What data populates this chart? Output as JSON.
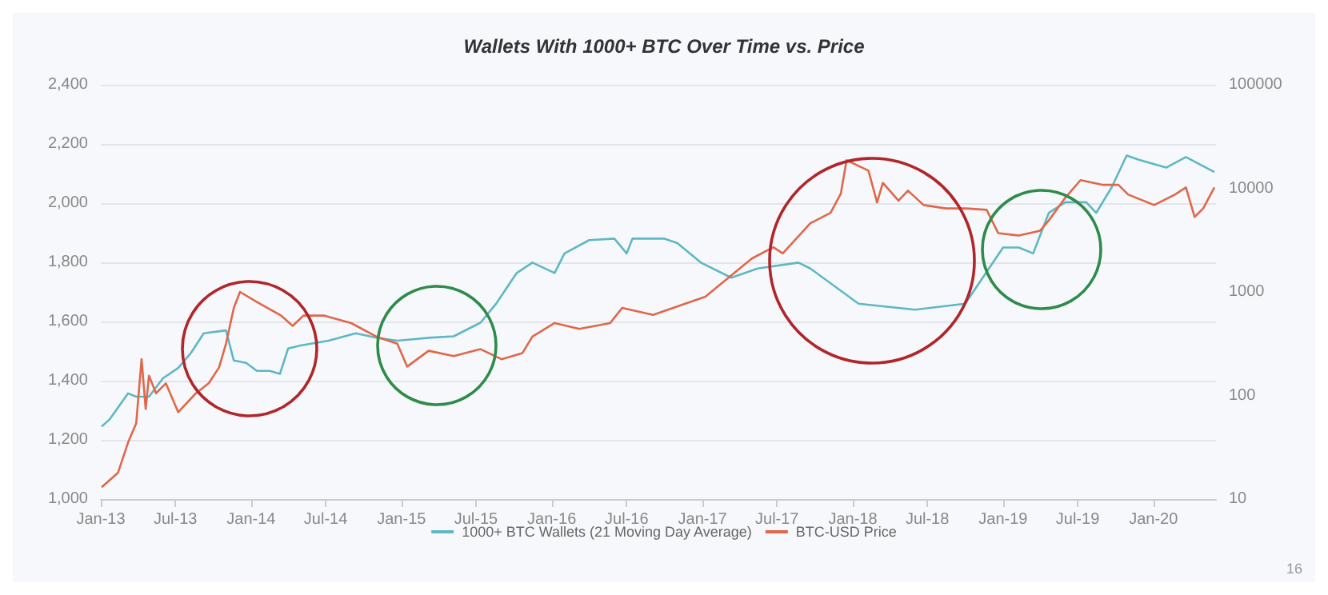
{
  "chart_data": {
    "type": "line",
    "title": "Wallets With 1000+ BTC Over Time vs. Price",
    "annotations": [
      "16"
    ],
    "xlim": [
      "2013-01",
      "2020-06"
    ],
    "xticks": [
      {
        "value": "2013-01",
        "label": "Jan-13"
      },
      {
        "value": "2013-07",
        "label": "Jul-13"
      },
      {
        "value": "2014-01",
        "label": "Jan-14"
      },
      {
        "value": "2014-07",
        "label": "Jul-14"
      },
      {
        "value": "2015-01",
        "label": "Jan-15"
      },
      {
        "value": "2015-07",
        "label": "Jul-15"
      },
      {
        "value": "2016-01",
        "label": "Jan-16"
      },
      {
        "value": "2016-07",
        "label": "Jul-16"
      },
      {
        "value": "2017-01",
        "label": "Jan-17"
      },
      {
        "value": "2017-07",
        "label": "Jul-17"
      },
      {
        "value": "2018-01",
        "label": "Jan-18"
      },
      {
        "value": "2018-07",
        "label": "Jul-18"
      },
      {
        "value": "2019-01",
        "label": "Jan-19"
      },
      {
        "value": "2019-07",
        "label": "Jul-19"
      },
      {
        "value": "2020-01",
        "label": "Jan-20"
      }
    ],
    "ylim": [
      1000,
      2400
    ],
    "yticks": [
      {
        "value": 1000,
        "label": "1,000"
      },
      {
        "value": 1200,
        "label": "1,200"
      },
      {
        "value": 1400,
        "label": "1,400"
      },
      {
        "value": 1600,
        "label": "1,600"
      },
      {
        "value": 1800,
        "label": "1,800"
      },
      {
        "value": 2000,
        "label": "2,000"
      },
      {
        "value": 2200,
        "label": "2,200"
      },
      {
        "value": 2400,
        "label": "2,400"
      }
    ],
    "y2lim": [
      10,
      100000
    ],
    "y2ticks": [
      10,
      100,
      1000,
      10000,
      100000
    ],
    "log": "y2",
    "grid": "y",
    "legend": "bottom",
    "line_style": "solid",
    "marker": "none",
    "series": [
      {
        "name": "1000+ BTC Wallets (21 Moving Day Average)",
        "color": "#5fb7c5",
        "x": [
          "2013-01-03",
          "2013-01-23",
          "2013-03-08",
          "2013-03-28",
          "2013-04-28",
          "2013-06-01",
          "2013-07-08",
          "2013-08-08",
          "2013-09-08",
          "2013-11-01",
          "2013-11-20",
          "2013-12-20",
          "2014-01-15",
          "2014-02-15",
          "2014-03-12",
          "2014-04-01",
          "2014-05-01",
          "2014-07-08",
          "2014-09-12",
          "2014-11-01",
          "2014-12-22",
          "2015-03-08",
          "2015-05-08",
          "2015-07-12",
          "2015-08-20",
          "2015-10-08",
          "2015-11-15",
          "2016-01-08",
          "2016-02-01",
          "2016-04-01",
          "2016-06-01",
          "2016-07-01",
          "2016-07-15",
          "2016-10-01",
          "2016-11-01",
          "2016-12-28",
          "2017-03-12",
          "2017-05-15",
          "2017-08-22",
          "2017-09-20",
          "2018-01-15",
          "2018-06-01",
          "2018-10-01",
          "2019-01-01",
          "2019-02-08",
          "2019-03-15",
          "2019-04-22",
          "2019-06-01",
          "2019-07-22",
          "2019-08-15",
          "2019-09-22",
          "2019-10-28",
          "2019-11-28",
          "2020-02-01",
          "2020-03-20",
          "2020-05-28"
        ],
        "values": [
          1245,
          1270,
          1357,
          1346,
          1346,
          1408,
          1443,
          1494,
          1560,
          1570,
          1468,
          1460,
          1433,
          1433,
          1423,
          1509,
          1519,
          1535,
          1560,
          1545,
          1535,
          1545,
          1550,
          1596,
          1662,
          1764,
          1799,
          1764,
          1830,
          1875,
          1880,
          1830,
          1880,
          1880,
          1865,
          1799,
          1748,
          1779,
          1799,
          1779,
          1660,
          1640,
          1660,
          1850,
          1850,
          1830,
          1967,
          2003,
          2003,
          1967,
          2054,
          2161,
          2146,
          2120,
          2156,
          2105
        ]
      },
      {
        "name": "BTC-USD Price",
        "color": "#e0674a",
        "axis": "y2",
        "x": [
          "2013-01-03",
          "2013-02-12",
          "2013-03-08",
          "2013-03-28",
          "2013-04-10",
          "2013-04-20",
          "2013-04-28",
          "2013-05-15",
          "2013-06-08",
          "2013-07-08",
          "2013-08-20",
          "2013-09-20",
          "2013-10-15",
          "2013-11-01",
          "2013-11-20",
          "2013-12-05",
          "2014-01-15",
          "2014-03-15",
          "2014-04-12",
          "2014-05-08",
          "2014-06-28",
          "2014-09-01",
          "2014-11-01",
          "2014-12-22",
          "2015-01-15",
          "2015-03-08",
          "2015-05-08",
          "2015-07-12",
          "2015-09-01",
          "2015-10-22",
          "2015-11-15",
          "2016-01-08",
          "2016-03-08",
          "2016-05-22",
          "2016-06-20",
          "2016-09-03",
          "2017-01-08",
          "2017-05-01",
          "2017-06-22",
          "2017-07-15",
          "2017-09-20",
          "2017-11-08",
          "2017-12-03",
          "2017-12-17",
          "2018-02-08",
          "2018-03-01",
          "2018-03-15",
          "2018-04-22",
          "2018-05-15",
          "2018-06-22",
          "2018-08-15",
          "2018-10-03",
          "2018-11-22",
          "2018-12-20",
          "2019-02-08",
          "2019-04-01",
          "2019-04-22",
          "2019-06-01",
          "2019-07-08",
          "2019-09-01",
          "2019-10-08",
          "2019-11-01",
          "2020-01-03",
          "2020-02-22",
          "2020-03-20",
          "2020-04-10",
          "2020-05-01",
          "2020-05-28"
        ],
        "values": [
          13,
          18,
          35,
          54,
          224,
          74,
          155,
          105,
          131,
          69,
          105,
          131,
          186,
          316,
          700,
          1000,
          800,
          590,
          470,
          590,
          590,
          500,
          370,
          316,
          190,
          270,
          240,
          280,
          224,
          257,
          370,
          500,
          440,
          500,
          700,
          600,
          900,
          2100,
          2700,
          2350,
          4600,
          5800,
          8900,
          18700,
          14800,
          7300,
          11300,
          7600,
          9500,
          6900,
          6400,
          6400,
          6200,
          3700,
          3500,
          3900,
          4900,
          8100,
          12000,
          10800,
          10800,
          8700,
          6900,
          8700,
          10200,
          5300,
          6400,
          10200
        ]
      }
    ]
  }
}
